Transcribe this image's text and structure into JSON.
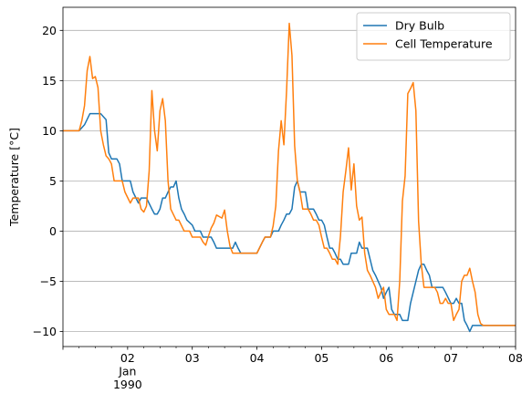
{
  "chart_data": {
    "type": "line",
    "title": "",
    "xlabel": "",
    "ylabel": "Temperature [°C]",
    "xlim": [
      "1990-01-01T00:00",
      "1990-01-08T00:00"
    ],
    "ylim": [
      -11.5,
      22.3
    ],
    "grid": "y-major",
    "legend_position": "top-right",
    "x_ticks": [
      {
        "value": "1990-01-02",
        "lines": [
          "02",
          "Jan",
          "1990"
        ]
      },
      {
        "value": "1990-01-03",
        "lines": [
          "03"
        ]
      },
      {
        "value": "1990-01-04",
        "lines": [
          "04"
        ]
      },
      {
        "value": "1990-01-05",
        "lines": [
          "05"
        ]
      },
      {
        "value": "1990-01-06",
        "lines": [
          "06"
        ]
      },
      {
        "value": "1990-01-07",
        "lines": [
          "07"
        ]
      },
      {
        "value": "1990-01-08",
        "lines": [
          "08"
        ]
      }
    ],
    "y_ticks": [
      {
        "value": -10,
        "label": "−10"
      },
      {
        "value": -5,
        "label": "−5"
      },
      {
        "value": 0,
        "label": "0"
      },
      {
        "value": 5,
        "label": "5"
      },
      {
        "value": 10,
        "label": "10"
      },
      {
        "value": 15,
        "label": "15"
      },
      {
        "value": 20,
        "label": "20"
      }
    ],
    "series": [
      {
        "name": "Dry Bulb",
        "color": "#1f77b4",
        "points": [
          [
            "1990-01-01T00:00",
            10.0
          ],
          [
            "1990-01-01T06:00",
            10.0
          ],
          [
            "1990-01-01T08:00",
            10.6
          ],
          [
            "1990-01-01T10:00",
            11.7
          ],
          [
            "1990-01-01T14:00",
            11.7
          ],
          [
            "1990-01-01T16:00",
            11.1
          ],
          [
            "1990-01-01T17:00",
            7.8
          ],
          [
            "1990-01-01T18:00",
            7.2
          ],
          [
            "1990-01-01T20:00",
            7.2
          ],
          [
            "1990-01-01T21:00",
            6.7
          ],
          [
            "1990-01-01T22:00",
            5.0
          ],
          [
            "1990-01-02T01:00",
            5.0
          ],
          [
            "1990-01-02T02:00",
            3.9
          ],
          [
            "1990-01-02T04:00",
            2.8
          ],
          [
            "1990-01-02T05:00",
            3.3
          ],
          [
            "1990-01-02T07:00",
            3.3
          ],
          [
            "1990-01-02T09:00",
            2.2
          ],
          [
            "1990-01-02T10:00",
            1.7
          ],
          [
            "1990-01-02T11:00",
            1.7
          ],
          [
            "1990-01-02T12:00",
            2.2
          ],
          [
            "1990-01-02T13:00",
            3.3
          ],
          [
            "1990-01-02T14:00",
            3.3
          ],
          [
            "1990-01-02T15:00",
            3.9
          ],
          [
            "1990-01-02T16:00",
            4.4
          ],
          [
            "1990-01-02T17:00",
            4.4
          ],
          [
            "1990-01-02T18:00",
            5.0
          ],
          [
            "1990-01-02T19:00",
            3.3
          ],
          [
            "1990-01-02T20:00",
            2.2
          ],
          [
            "1990-01-02T21:00",
            1.7
          ],
          [
            "1990-01-02T22:00",
            1.1
          ],
          [
            "1990-01-03T00:00",
            0.6
          ],
          [
            "1990-01-03T01:00",
            0.0
          ],
          [
            "1990-01-03T03:00",
            0.0
          ],
          [
            "1990-01-03T04:00",
            -0.6
          ],
          [
            "1990-01-03T07:00",
            -0.6
          ],
          [
            "1990-01-03T08:00",
            -1.1
          ],
          [
            "1990-01-03T09:00",
            -1.7
          ],
          [
            "1990-01-03T15:00",
            -1.7
          ],
          [
            "1990-01-03T16:00",
            -1.1
          ],
          [
            "1990-01-03T17:00",
            -1.7
          ],
          [
            "1990-01-03T18:00",
            -2.2
          ],
          [
            "1990-01-04T00:00",
            -2.2
          ],
          [
            "1990-01-04T02:00",
            -1.1
          ],
          [
            "1990-01-04T03:00",
            -0.6
          ],
          [
            "1990-01-04T05:00",
            -0.6
          ],
          [
            "1990-01-04T06:00",
            0.0
          ],
          [
            "1990-01-04T08:00",
            0.0
          ],
          [
            "1990-01-04T09:00",
            0.6
          ],
          [
            "1990-01-04T10:00",
            1.1
          ],
          [
            "1990-01-04T11:00",
            1.7
          ],
          [
            "1990-01-04T12:00",
            1.7
          ],
          [
            "1990-01-04T13:00",
            2.2
          ],
          [
            "1990-01-04T14:00",
            4.4
          ],
          [
            "1990-01-04T15:00",
            5.0
          ],
          [
            "1990-01-04T16:00",
            3.9
          ],
          [
            "1990-01-04T18:00",
            3.9
          ],
          [
            "1990-01-04T19:00",
            2.2
          ],
          [
            "1990-01-04T21:00",
            2.2
          ],
          [
            "1990-01-04T22:00",
            1.7
          ],
          [
            "1990-01-04T23:00",
            1.1
          ],
          [
            "1990-01-05T00:00",
            1.1
          ],
          [
            "1990-01-05T01:00",
            0.6
          ],
          [
            "1990-01-05T02:00",
            -0.6
          ],
          [
            "1990-01-05T03:00",
            -1.7
          ],
          [
            "1990-01-05T04:00",
            -1.7
          ],
          [
            "1990-01-05T05:00",
            -2.2
          ],
          [
            "1990-01-05T06:00",
            -2.8
          ],
          [
            "1990-01-05T07:00",
            -2.8
          ],
          [
            "1990-01-05T08:00",
            -3.3
          ],
          [
            "1990-01-05T10:00",
            -3.3
          ],
          [
            "1990-01-05T11:00",
            -2.2
          ],
          [
            "1990-01-05T13:00",
            -2.2
          ],
          [
            "1990-01-05T14:00",
            -1.1
          ],
          [
            "1990-01-05T15:00",
            -1.7
          ],
          [
            "1990-01-05T17:00",
            -1.7
          ],
          [
            "1990-01-05T18:00",
            -2.8
          ],
          [
            "1990-01-05T19:00",
            -3.9
          ],
          [
            "1990-01-05T20:00",
            -4.4
          ],
          [
            "1990-01-05T21:00",
            -5.0
          ],
          [
            "1990-01-05T22:00",
            -5.6
          ],
          [
            "1990-01-05T23:00",
            -6.7
          ],
          [
            "1990-01-06T00:00",
            -6.1
          ],
          [
            "1990-01-06T01:00",
            -5.6
          ],
          [
            "1990-01-06T02:00",
            -7.8
          ],
          [
            "1990-01-06T03:00",
            -8.3
          ],
          [
            "1990-01-06T05:00",
            -8.3
          ],
          [
            "1990-01-06T06:00",
            -8.9
          ],
          [
            "1990-01-06T08:00",
            -8.9
          ],
          [
            "1990-01-06T09:00",
            -7.2
          ],
          [
            "1990-01-06T10:00",
            -6.1
          ],
          [
            "1990-01-06T11:00",
            -5.0
          ],
          [
            "1990-01-06T12:00",
            -3.9
          ],
          [
            "1990-01-06T13:00",
            -3.3
          ],
          [
            "1990-01-06T14:00",
            -3.3
          ],
          [
            "1990-01-06T15:00",
            -3.9
          ],
          [
            "1990-01-06T16:00",
            -4.4
          ],
          [
            "1990-01-06T17:00",
            -5.6
          ],
          [
            "1990-01-06T21:00",
            -5.6
          ],
          [
            "1990-01-06T22:00",
            -6.1
          ],
          [
            "1990-01-07T00:00",
            -7.2
          ],
          [
            "1990-01-07T01:00",
            -7.2
          ],
          [
            "1990-01-07T02:00",
            -6.7
          ],
          [
            "1990-01-07T03:00",
            -7.2
          ],
          [
            "1990-01-07T04:00",
            -7.2
          ],
          [
            "1990-01-07T05:00",
            -8.9
          ],
          [
            "1990-01-07T06:00",
            -9.4
          ],
          [
            "1990-01-07T07:00",
            -10.0
          ],
          [
            "1990-01-07T08:00",
            -9.4
          ],
          [
            "1990-01-08T00:00",
            -9.4
          ]
        ]
      },
      {
        "name": "Cell Temperature",
        "color": "#ff7f0e",
        "points": [
          [
            "1990-01-01T00:00",
            10.0
          ],
          [
            "1990-01-01T06:00",
            10.0
          ],
          [
            "1990-01-01T07:00",
            11.0
          ],
          [
            "1990-01-01T08:00",
            12.5
          ],
          [
            "1990-01-01T09:00",
            16.0
          ],
          [
            "1990-01-01T10:00",
            17.4
          ],
          [
            "1990-01-01T11:00",
            15.2
          ],
          [
            "1990-01-01T12:00",
            15.4
          ],
          [
            "1990-01-01T13:00",
            14.3
          ],
          [
            "1990-01-01T14:00",
            10.0
          ],
          [
            "1990-01-01T15:00",
            8.6
          ],
          [
            "1990-01-01T16:00",
            7.5
          ],
          [
            "1990-01-01T17:00",
            7.2
          ],
          [
            "1990-01-01T18:00",
            6.7
          ],
          [
            "1990-01-01T19:00",
            5.0
          ],
          [
            "1990-01-01T22:00",
            5.0
          ],
          [
            "1990-01-01T23:00",
            3.9
          ],
          [
            "1990-01-02T01:00",
            2.8
          ],
          [
            "1990-01-02T02:00",
            3.3
          ],
          [
            "1990-01-02T04:00",
            3.3
          ],
          [
            "1990-01-02T05:00",
            2.2
          ],
          [
            "1990-01-02T06:00",
            1.9
          ],
          [
            "1990-01-02T07:00",
            2.5
          ],
          [
            "1990-01-02T08:00",
            6.0
          ],
          [
            "1990-01-02T09:00",
            14.0
          ],
          [
            "1990-01-02T10:00",
            10.0
          ],
          [
            "1990-01-02T11:00",
            8.0
          ],
          [
            "1990-01-02T12:00",
            12.0
          ],
          [
            "1990-01-02T13:00",
            13.2
          ],
          [
            "1990-01-02T14:00",
            11.0
          ],
          [
            "1990-01-02T15:00",
            5.0
          ],
          [
            "1990-01-02T16:00",
            2.2
          ],
          [
            "1990-01-02T18:00",
            1.1
          ],
          [
            "1990-01-02T19:00",
            1.1
          ],
          [
            "1990-01-02T21:00",
            0.0
          ],
          [
            "1990-01-02T23:00",
            0.0
          ],
          [
            "1990-01-03T00:00",
            -0.6
          ],
          [
            "1990-01-03T03:00",
            -0.6
          ],
          [
            "1990-01-03T04:00",
            -1.1
          ],
          [
            "1990-01-03T05:00",
            -1.4
          ],
          [
            "1990-01-03T06:00",
            -0.5
          ],
          [
            "1990-01-03T07:00",
            0.3
          ],
          [
            "1990-01-03T08:00",
            0.8
          ],
          [
            "1990-01-03T09:00",
            1.6
          ],
          [
            "1990-01-03T11:00",
            1.3
          ],
          [
            "1990-01-03T12:00",
            2.1
          ],
          [
            "1990-01-03T13:00",
            0.0
          ],
          [
            "1990-01-03T14:00",
            -1.5
          ],
          [
            "1990-01-03T15:00",
            -2.2
          ],
          [
            "1990-01-04T00:00",
            -2.2
          ],
          [
            "1990-01-04T02:00",
            -1.1
          ],
          [
            "1990-01-04T03:00",
            -0.6
          ],
          [
            "1990-01-04T05:00",
            -0.6
          ],
          [
            "1990-01-04T06:00",
            0.5
          ],
          [
            "1990-01-04T07:00",
            2.5
          ],
          [
            "1990-01-04T08:00",
            8.0
          ],
          [
            "1990-01-04T09:00",
            11.0
          ],
          [
            "1990-01-04T10:00",
            8.6
          ],
          [
            "1990-01-04T11:00",
            14.0
          ],
          [
            "1990-01-04T12:00",
            20.7
          ],
          [
            "1990-01-04T13:00",
            17.5
          ],
          [
            "1990-01-04T14:00",
            8.5
          ],
          [
            "1990-01-04T15:00",
            5.0
          ],
          [
            "1990-01-04T16:00",
            3.9
          ],
          [
            "1990-01-04T17:00",
            2.2
          ],
          [
            "1990-01-04T19:00",
            2.2
          ],
          [
            "1990-01-04T20:00",
            1.7
          ],
          [
            "1990-01-04T21:00",
            1.1
          ],
          [
            "1990-01-04T22:00",
            1.1
          ],
          [
            "1990-01-04T23:00",
            0.6
          ],
          [
            "1990-01-05T00:00",
            -0.6
          ],
          [
            "1990-01-05T01:00",
            -1.7
          ],
          [
            "1990-01-05T02:00",
            -1.7
          ],
          [
            "1990-01-05T03:00",
            -2.2
          ],
          [
            "1990-01-05T04:00",
            -2.8
          ],
          [
            "1990-01-05T05:00",
            -2.8
          ],
          [
            "1990-01-05T06:00",
            -3.3
          ],
          [
            "1990-01-05T07:00",
            -0.5
          ],
          [
            "1990-01-05T08:00",
            3.9
          ],
          [
            "1990-01-05T09:00",
            6.0
          ],
          [
            "1990-01-05T10:00",
            8.3
          ],
          [
            "1990-01-05T11:00",
            4.1
          ],
          [
            "1990-01-05T12:00",
            6.7
          ],
          [
            "1990-01-05T13:00",
            2.5
          ],
          [
            "1990-01-05T14:00",
            1.1
          ],
          [
            "1990-01-05T15:00",
            1.4
          ],
          [
            "1990-01-05T16:00",
            -2.2
          ],
          [
            "1990-01-05T17:00",
            -3.9
          ],
          [
            "1990-01-05T18:00",
            -4.4
          ],
          [
            "1990-01-05T19:00",
            -5.0
          ],
          [
            "1990-01-05T20:00",
            -5.6
          ],
          [
            "1990-01-05T21:00",
            -6.7
          ],
          [
            "1990-01-05T22:00",
            -6.1
          ],
          [
            "1990-01-05T23:00",
            -5.6
          ],
          [
            "1990-01-06T00:00",
            -7.8
          ],
          [
            "1990-01-06T01:00",
            -8.3
          ],
          [
            "1990-01-06T03:00",
            -8.3
          ],
          [
            "1990-01-06T04:00",
            -8.9
          ],
          [
            "1990-01-06T05:00",
            -5.0
          ],
          [
            "1990-01-06T06:00",
            3.0
          ],
          [
            "1990-01-06T07:00",
            5.5
          ],
          [
            "1990-01-06T08:00",
            13.7
          ],
          [
            "1990-01-06T09:00",
            14.2
          ],
          [
            "1990-01-06T10:00",
            14.8
          ],
          [
            "1990-01-06T11:00",
            12.0
          ],
          [
            "1990-01-06T12:00",
            1.0
          ],
          [
            "1990-01-06T13:00",
            -3.3
          ],
          [
            "1990-01-06T14:00",
            -5.6
          ],
          [
            "1990-01-06T18:00",
            -5.6
          ],
          [
            "1990-01-06T19:00",
            -6.1
          ],
          [
            "1990-01-06T20:00",
            -7.2
          ],
          [
            "1990-01-06T21:00",
            -7.2
          ],
          [
            "1990-01-06T22:00",
            -6.7
          ],
          [
            "1990-01-06T23:00",
            -7.2
          ],
          [
            "1990-01-07T00:00",
            -7.2
          ],
          [
            "1990-01-07T01:00",
            -8.9
          ],
          [
            "1990-01-07T02:00",
            -8.3
          ],
          [
            "1990-01-07T03:00",
            -7.8
          ],
          [
            "1990-01-07T04:00",
            -5.0
          ],
          [
            "1990-01-07T05:00",
            -4.4
          ],
          [
            "1990-01-07T06:00",
            -4.4
          ],
          [
            "1990-01-07T07:00",
            -3.7
          ],
          [
            "1990-01-07T08:00",
            -5.0
          ],
          [
            "1990-01-07T09:00",
            -6.1
          ],
          [
            "1990-01-07T10:00",
            -8.3
          ],
          [
            "1990-01-07T11:00",
            -9.2
          ],
          [
            "1990-01-07T12:00",
            -9.4
          ],
          [
            "1990-01-08T00:00",
            -9.4
          ]
        ]
      }
    ]
  }
}
